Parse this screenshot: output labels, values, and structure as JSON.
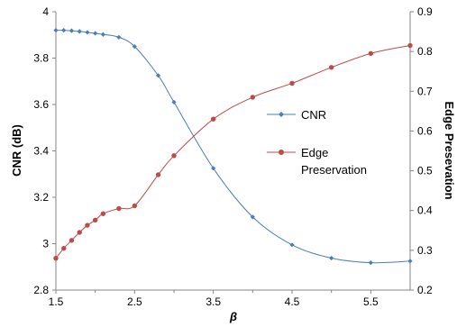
{
  "chart_data": {
    "type": "line",
    "xlabel": "β",
    "ylabel": "CNR (dB)",
    "y2label": "Edge Presevation",
    "xlim": [
      1.5,
      6.0
    ],
    "ylim": [
      2.8,
      4.0
    ],
    "y2lim": [
      0.2,
      0.9
    ],
    "xticks": [
      "1.5",
      "2.5",
      "3.5",
      "4.5",
      "5.5"
    ],
    "yticks": [
      "2.8",
      "3",
      "3.2",
      "3.4",
      "3.6",
      "3.8",
      "4"
    ],
    "y2ticks": [
      "0.2",
      "0.3",
      "0.4",
      "0.5",
      "0.6",
      "0.7",
      "0.8",
      "0.9"
    ],
    "grid": false,
    "legend_position": "center-right",
    "series": [
      {
        "name": "CNR",
        "axis": "left",
        "color": "#4a7ebb",
        "marker": "diamond",
        "x": [
          1.5,
          1.6,
          1.7,
          1.8,
          1.9,
          2.0,
          2.1,
          2.3,
          2.5,
          2.8,
          3.0,
          3.5,
          4.0,
          4.5,
          5.0,
          5.5,
          6.0
        ],
        "y": [
          3.92,
          3.92,
          3.918,
          3.915,
          3.911,
          3.907,
          3.902,
          3.89,
          3.85,
          3.725,
          3.61,
          3.325,
          3.115,
          2.995,
          2.938,
          2.918,
          2.925
        ]
      },
      {
        "name": "Edge Preservation",
        "axis": "right",
        "color": "#be4b48",
        "marker": "circle",
        "x": [
          1.5,
          1.6,
          1.7,
          1.8,
          1.9,
          2.0,
          2.1,
          2.3,
          2.5,
          2.8,
          3.0,
          3.5,
          4.0,
          4.5,
          5.0,
          5.5,
          6.0
        ],
        "y": [
          0.28,
          0.305,
          0.325,
          0.345,
          0.363,
          0.376,
          0.392,
          0.405,
          0.412,
          0.49,
          0.538,
          0.63,
          0.685,
          0.72,
          0.76,
          0.795,
          0.815
        ]
      }
    ]
  }
}
